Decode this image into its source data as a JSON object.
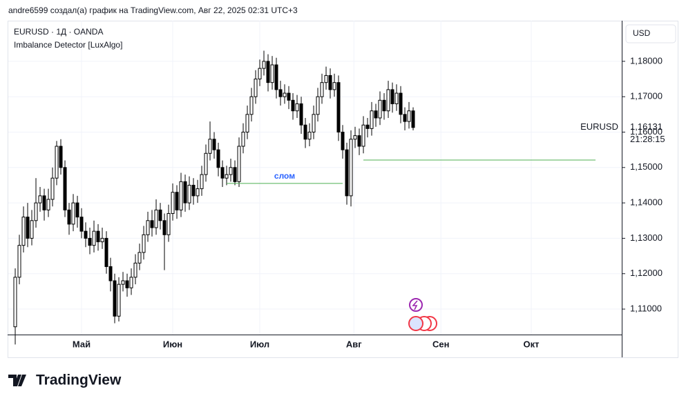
{
  "header": "andre6599 создал(а) график на TradingView.com, Авг 22, 2025 02:31 UTC+3",
  "logo": "TradingView",
  "chart_data": {
    "type": "candlestick",
    "legend": [
      "EURUSD · 1Д · OANDA",
      "Imbalance Detector [LuxAlgo]"
    ],
    "currency": "USD",
    "symbol": "EURUSD",
    "last_price": {
      "value": 1.16131,
      "label": "1,16131"
    },
    "countdown": "21:28:15",
    "up_color": "#ffffff",
    "down_color": "#000000",
    "wick_color": "#000000",
    "grid": true,
    "xlim": [
      -1.67,
      146.33
    ],
    "xticks": [
      {
        "value": 16,
        "label": "Май"
      },
      {
        "value": 38,
        "label": "Июн"
      },
      {
        "value": 59,
        "label": "Июл"
      },
      {
        "value": 81.7,
        "label": "Авг"
      },
      {
        "value": 102.7,
        "label": "Сен"
      },
      {
        "value": 124.5,
        "label": "Окт"
      }
    ],
    "ylim": [
      1.1028,
      1.1905
    ],
    "yticks": [
      {
        "value": 1.11,
        "label": "1,11000"
      },
      {
        "value": 1.12,
        "label": "1,12000"
      },
      {
        "value": 1.13,
        "label": "1,13000"
      },
      {
        "value": 1.14,
        "label": "1,14000"
      },
      {
        "value": 1.15,
        "label": "1,15000"
      },
      {
        "value": 1.16,
        "label": "1,16000"
      },
      {
        "value": 1.17,
        "label": "1,17000"
      },
      {
        "value": 1.18,
        "label": "1,18000"
      }
    ],
    "open": [
      1.105,
      1.119,
      1.128,
      1.136,
      1.13,
      1.135,
      1.14,
      1.142,
      1.138,
      1.141,
      1.147,
      1.156,
      1.15,
      1.138,
      1.134,
      1.14,
      1.136,
      1.132,
      1.13,
      1.128,
      1.132,
      1.129,
      1.13,
      1.122,
      1.118,
      1.108,
      1.117,
      1.118,
      1.116,
      1.119,
      1.123,
      1.126,
      1.131,
      1.135,
      1.133,
      1.138,
      1.135,
      1.131,
      1.137,
      1.143,
      1.138,
      1.146,
      1.14,
      1.145,
      1.142,
      1.144,
      1.148,
      1.154,
      1.158,
      1.155,
      1.15,
      1.147,
      1.148,
      1.15,
      1.146,
      1.156,
      1.16,
      1.165,
      1.17,
      1.175,
      1.178,
      1.18,
      1.174,
      1.179,
      1.172,
      1.17,
      1.171,
      1.169,
      1.166,
      1.168,
      1.162,
      1.158,
      1.16,
      1.165,
      1.17,
      1.174,
      1.176,
      1.172,
      1.174,
      1.16,
      1.155,
      1.142,
      1.158,
      1.159,
      1.156,
      1.162,
      1.161,
      1.166,
      1.164,
      1.169,
      1.166,
      1.172,
      1.168,
      1.171,
      1.165,
      1.163,
      1.166
    ],
    "high": [
      1.1215,
      1.131,
      1.139,
      1.14,
      1.138,
      1.147,
      1.1445,
      1.144,
      1.144,
      1.15,
      1.1575,
      1.158,
      1.152,
      1.14,
      1.1425,
      1.142,
      1.1385,
      1.1345,
      1.133,
      1.135,
      1.134,
      1.133,
      1.132,
      1.1245,
      1.12,
      1.119,
      1.1205,
      1.12,
      1.1215,
      1.1255,
      1.1285,
      1.1335,
      1.1375,
      1.138,
      1.141,
      1.14,
      1.137,
      1.1395,
      1.1455,
      1.145,
      1.1485,
      1.148,
      1.1475,
      1.147,
      1.1465,
      1.1505,
      1.1565,
      1.163,
      1.16,
      1.157,
      1.152,
      1.1505,
      1.1525,
      1.152,
      1.1585,
      1.1625,
      1.1675,
      1.1725,
      1.1775,
      1.1805,
      1.183,
      1.182,
      1.1815,
      1.181,
      1.1745,
      1.1735,
      1.173,
      1.171,
      1.1705,
      1.17,
      1.164,
      1.1625,
      1.1675,
      1.1725,
      1.1765,
      1.1785,
      1.178,
      1.1765,
      1.176,
      1.162,
      1.157,
      1.1605,
      1.1615,
      1.161,
      1.1645,
      1.164,
      1.1685,
      1.168,
      1.1715,
      1.171,
      1.1745,
      1.174,
      1.1735,
      1.173,
      1.167,
      1.1685,
      1.167
    ],
    "low": [
      1.1,
      1.117,
      1.126,
      1.1275,
      1.128,
      1.133,
      1.1375,
      1.135,
      1.136,
      1.139,
      1.145,
      1.148,
      1.136,
      1.131,
      1.132,
      1.133,
      1.13,
      1.1275,
      1.1255,
      1.126,
      1.1265,
      1.127,
      1.12,
      1.115,
      1.106,
      1.1065,
      1.115,
      1.1135,
      1.114,
      1.117,
      1.121,
      1.124,
      1.129,
      1.1305,
      1.131,
      1.1325,
      1.121,
      1.129,
      1.135,
      1.1355,
      1.136,
      1.1375,
      1.138,
      1.1395,
      1.14,
      1.142,
      1.146,
      1.152,
      1.1525,
      1.1475,
      1.1445,
      1.145,
      1.146,
      1.145,
      1.1445,
      1.154,
      1.158,
      1.163,
      1.168,
      1.173,
      1.176,
      1.1715,
      1.172,
      1.1695,
      1.1675,
      1.168,
      1.1665,
      1.1635,
      1.164,
      1.1595,
      1.1555,
      1.156,
      1.158,
      1.163,
      1.168,
      1.172,
      1.1695,
      1.17,
      1.1575,
      1.1525,
      1.1395,
      1.139,
      1.1555,
      1.1535,
      1.154,
      1.1585,
      1.159,
      1.1615,
      1.162,
      1.1635,
      1.164,
      1.1655,
      1.166,
      1.1625,
      1.1605,
      1.161,
      1.1605
    ],
    "close": [
      1.119,
      1.128,
      1.136,
      1.13,
      1.135,
      1.14,
      1.142,
      1.138,
      1.141,
      1.147,
      1.156,
      1.15,
      1.138,
      1.134,
      1.14,
      1.136,
      1.132,
      1.13,
      1.128,
      1.132,
      1.129,
      1.13,
      1.122,
      1.118,
      1.108,
      1.117,
      1.118,
      1.116,
      1.119,
      1.123,
      1.126,
      1.131,
      1.135,
      1.133,
      1.138,
      1.135,
      1.131,
      1.137,
      1.143,
      1.138,
      1.146,
      1.14,
      1.145,
      1.142,
      1.144,
      1.148,
      1.154,
      1.158,
      1.155,
      1.15,
      1.147,
      1.148,
      1.15,
      1.146,
      1.156,
      1.16,
      1.165,
      1.17,
      1.175,
      1.178,
      1.18,
      1.174,
      1.179,
      1.172,
      1.17,
      1.171,
      1.169,
      1.166,
      1.168,
      1.162,
      1.158,
      1.16,
      1.165,
      1.17,
      1.174,
      1.176,
      1.172,
      1.174,
      1.16,
      1.155,
      1.142,
      1.158,
      1.159,
      1.156,
      1.162,
      1.161,
      1.166,
      1.164,
      1.169,
      1.166,
      1.172,
      1.168,
      1.171,
      1.165,
      1.163,
      1.166,
      1.1613
    ],
    "levels": [
      {
        "value": 1.1455,
        "x": [
          51,
          79
        ],
        "color": "#4caf50",
        "label": "слом",
        "label_color": "#2962ff"
      },
      {
        "value": 1.1521,
        "x": [
          84,
          140
        ],
        "color": "#4caf50"
      }
    ]
  }
}
